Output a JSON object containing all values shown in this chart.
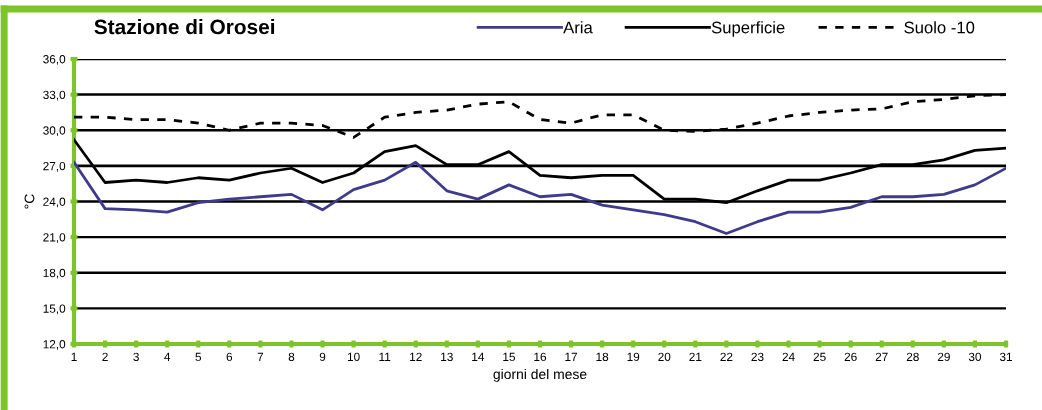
{
  "chart_data": {
    "type": "line",
    "title": "Stazione di Orosei",
    "xlabel": "giorni del mese",
    "ylabel": "°C",
    "x": [
      1,
      2,
      3,
      4,
      5,
      6,
      7,
      8,
      9,
      10,
      11,
      12,
      13,
      14,
      15,
      16,
      17,
      18,
      19,
      20,
      21,
      22,
      23,
      24,
      25,
      26,
      27,
      28,
      29,
      30,
      31
    ],
    "series": [
      {
        "name": "Aria",
        "color": "#3f3a8c",
        "line_style": "solid",
        "values": [
          27.3,
          23.4,
          23.3,
          23.1,
          23.9,
          24.2,
          24.4,
          24.6,
          23.3,
          25.0,
          25.8,
          27.3,
          24.9,
          24.2,
          25.4,
          24.4,
          24.6,
          23.7,
          23.3,
          22.9,
          22.3,
          21.3,
          22.3,
          23.1,
          23.1,
          23.5,
          24.4,
          24.4,
          24.6,
          25.4,
          26.8
        ]
      },
      {
        "name": "Superficie",
        "color": "#000000",
        "line_style": "solid",
        "values": [
          29.2,
          25.6,
          25.8,
          25.6,
          26.0,
          25.8,
          26.4,
          26.8,
          25.6,
          26.4,
          28.2,
          28.7,
          27.1,
          27.1,
          28.2,
          26.2,
          26.0,
          26.2,
          26.2,
          24.2,
          24.2,
          23.9,
          24.9,
          25.8,
          25.8,
          26.4,
          27.1,
          27.1,
          27.5,
          28.3,
          28.5
        ]
      },
      {
        "name": "Suolo -10",
        "color": "#000000",
        "line_style": "dashed",
        "values": [
          31.1,
          31.1,
          30.9,
          30.9,
          30.6,
          30.0,
          30.6,
          30.6,
          30.4,
          29.4,
          31.1,
          31.5,
          31.7,
          32.2,
          32.4,
          30.9,
          30.6,
          31.3,
          31.3,
          30.0,
          29.9,
          30.1,
          30.6,
          31.2,
          31.5,
          31.7,
          31.8,
          32.4,
          32.6,
          32.9,
          33.0
        ]
      }
    ],
    "xlim": [
      1,
      31
    ],
    "xticks": [
      1,
      2,
      3,
      4,
      5,
      6,
      7,
      8,
      9,
      10,
      11,
      12,
      13,
      14,
      15,
      16,
      17,
      18,
      19,
      20,
      21,
      22,
      23,
      24,
      25,
      26,
      27,
      28,
      29,
      30,
      31
    ],
    "ylim": [
      12,
      36
    ],
    "yticks": [
      {
        "value": 12,
        "label": "12,0"
      },
      {
        "value": 15,
        "label": "15,0"
      },
      {
        "value": 18,
        "label": "18,0"
      },
      {
        "value": 21,
        "label": "21,0"
      },
      {
        "value": 24,
        "label": "24,0"
      },
      {
        "value": 27,
        "label": "27,0"
      },
      {
        "value": 30,
        "label": "30,0"
      },
      {
        "value": 33,
        "label": "33,0"
      },
      {
        "value": 36,
        "label": "36,0"
      }
    ],
    "grid": "y",
    "legend": "top right",
    "marker": "none"
  }
}
